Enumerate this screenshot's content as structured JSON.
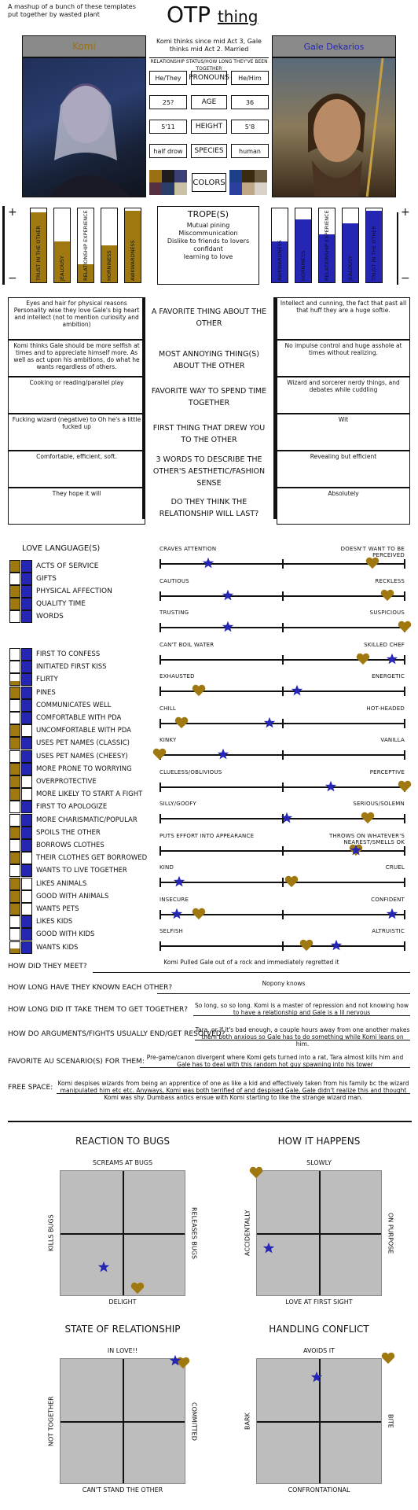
{
  "header": {
    "credit_1": "A mashup of a bunch of these templates",
    "credit_2": "put together by wasted plant",
    "title_main": "OTP",
    "title_sub": "thing"
  },
  "left_name": "Komi",
  "right_name": "Gale Dekarios",
  "relationship_note": "Komi thinks since mid Act 3, Gale thinks mid Act 2. Married",
  "relationship_label": "RELATIONSHIP STATUS/HOW LONG THEY'VE BEEN TOGETHER",
  "stats": [
    {
      "label": "PRONOUNS",
      "left": "He/They",
      "right": "He/Him"
    },
    {
      "label": "AGE",
      "left": "25?",
      "right": "36"
    },
    {
      "label": "HEIGHT",
      "left": "5'11",
      "right": "5'8"
    },
    {
      "label": "SPECIES",
      "left": "half drow",
      "right": "human"
    }
  ],
  "colors_label": "COLORS",
  "colors_left": [
    "#9a7012",
    "#1e1c1c",
    "#3a3f78",
    "#553040",
    "#2a3c68",
    "#c9c2a4"
  ],
  "colors_right": [
    "#1c3f8a",
    "#3a2a10",
    "#6a5a40",
    "#2b3f9e",
    "#c0a886",
    "#d9d2c8"
  ],
  "bars_left": [
    {
      "label": "TRUST IN THE OTHER",
      "level": 0.95
    },
    {
      "label": "JEALOUSY",
      "level": 0.55
    },
    {
      "label": "RELATIONSHIP EXPERIENCE",
      "level": 0.25
    },
    {
      "label": "HORNINESS",
      "level": 0.5
    },
    {
      "label": "AWKWARDNESS",
      "level": 0.97
    }
  ],
  "bars_right": [
    {
      "label": "AWKWARDNESS",
      "level": 0.55
    },
    {
      "label": "HORNINESS",
      "level": 0.85
    },
    {
      "label": "RELATIONSHIP EXPERIENCE",
      "level": 0.65
    },
    {
      "label": "JEALOUSY",
      "level": 0.8
    },
    {
      "label": "TRUST IN THE OTHER",
      "level": 0.97
    }
  ],
  "tropes_title": "TROPE(S)",
  "tropes": [
    "Mutual pining",
    "Miscommunication",
    "Dislike to friends to lovers",
    "confidant",
    "learning to love"
  ],
  "qa": [
    {
      "q": "A FAVORITE THING ABOUT THE OTHER",
      "left": "Eyes and hair for physical reasons Personality wise they love Gale's big heart and intellect (not to mention curiosity and ambition)",
      "right": "Intellect and cunning, the fact that past all that huff they are a huge softie."
    },
    {
      "q": "MOST ANNOYING THING(S) ABOUT THE OTHER",
      "left": "Komi thinks Gale should be more selfish at times and to appreciate himself more. As well as act upon his ambitions, do what he wants regardless of others.",
      "right": "No impulse control and huge asshole at times without realizing."
    },
    {
      "q": "FAVORITE WAY TO SPEND TIME TOGETHER",
      "left": "Cooking or reading/parallel play",
      "right": "Wizard and sorcerer nerdy things, and debates while cuddling"
    },
    {
      "q": "FIRST THING THAT DREW YOU TO THE OTHER",
      "left": "Fucking wizard (negative) to Oh he's a little fucked up",
      "right": "Wit"
    },
    {
      "q": "3 WORDS TO DESCRIBE THE OTHER'S AESTHETIC/FASHION SENSE",
      "left": "Comfortable, efficient, soft.",
      "right": "Revealing but efficient"
    },
    {
      "q": "DO THEY THINK THE RELATIONSHIP WILL LAST?",
      "left": "They hope it will",
      "right": "Absolutely"
    }
  ],
  "love_language_title": "LOVE LANGUAGE(S)",
  "love_languages": [
    {
      "label": "ACTS OF SERVICE",
      "left": 1,
      "right": 1
    },
    {
      "label": "GIFTS",
      "left": 0,
      "right": 1
    },
    {
      "label": "PHYSICAL AFFECTION",
      "left": 1,
      "right": 1
    },
    {
      "label": "QUALITY TIME",
      "left": 1,
      "right": 1
    },
    {
      "label": "WORDS",
      "left": 0,
      "right": 1
    }
  ],
  "traits": [
    {
      "label": "FIRST TO CONFESS",
      "left": 0,
      "right": 1
    },
    {
      "label": "INITIATED FIRST KISS",
      "left": 0,
      "right": 1
    },
    {
      "label": "FLIRTY",
      "left": 0.4,
      "right": 1
    },
    {
      "label": "PINES",
      "left": 1,
      "right": 1
    },
    {
      "label": "COMMUNICATES WELL",
      "left": 0,
      "right": 1
    },
    {
      "label": "COMFORTABLE WITH PDA",
      "left": 0,
      "right": 1
    },
    {
      "label": "UNCOMFORTABLE WITH PDA",
      "left": 1,
      "right": 0
    },
    {
      "label": "USES PET NAMES (CLASSIC)",
      "left": 1,
      "right": 1
    },
    {
      "label": "USES PET NAMES (CHEESY)",
      "left": 0,
      "right": 1
    },
    {
      "label": "MORE PRONE TO WORRYING",
      "left": 1,
      "right": 1
    },
    {
      "label": "OVERPROTECTIVE",
      "left": 1,
      "right": 0
    },
    {
      "label": "MORE LIKELY TO START A FIGHT",
      "left": 1,
      "right": 0
    },
    {
      "label": "FIRST TO APOLOGIZE",
      "left": 0,
      "right": 1
    },
    {
      "label": "MORE CHARISMATIC/POPULAR",
      "left": 0,
      "right": 1
    },
    {
      "label": "SPOILS THE OTHER",
      "left": 1,
      "right": 1
    },
    {
      "label": "BORROWS CLOTHES",
      "left": 0,
      "right": 1
    },
    {
      "label": "THEIR CLOTHES GET BORROWED",
      "left": 1,
      "right": 0
    },
    {
      "label": "WANTS TO LIVE TOGETHER",
      "left": 0,
      "right": 1
    },
    {
      "label": "LIKES ANIMALS",
      "left": 1,
      "right": 0
    },
    {
      "label": "GOOD WITH ANIMALS",
      "left": 1,
      "right": 0
    },
    {
      "label": "WANTS PETS",
      "left": 1,
      "right": 0
    },
    {
      "label": "LIKES KIDS",
      "left": 0,
      "right": 1
    },
    {
      "label": "GOOD WITH KIDS",
      "left": 0,
      "right": 1
    },
    {
      "label": "WANTS KIDS",
      "left": 0.4,
      "right": 1
    }
  ],
  "sliders": [
    {
      "left": "CRAVES ATTENTION",
      "right": "DOESN'T WANT TO BE PERCEIVED",
      "heart": 0.87,
      "star": 0.2
    },
    {
      "left": "CAUTIOUS",
      "right": "RECKLESS",
      "heart": 0.93,
      "star": 0.28
    },
    {
      "left": "TRUSTING",
      "right": "SUSPICIOUS",
      "heart": 1.0,
      "star": 0.28
    },
    {
      "left": "CAN'T BOIL WATER",
      "right": "SKILLED CHEF",
      "heart": 0.83,
      "star": 0.95
    },
    {
      "left": "EXHAUSTED",
      "right": "ENERGETIC",
      "heart": 0.16,
      "star": 0.56
    },
    {
      "left": "CHILL",
      "right": "HOT-HEADED",
      "heart": 0.09,
      "star": 0.45
    },
    {
      "left": "KINKY",
      "right": "VANILLA",
      "heart": 0.0,
      "star": 0.26
    },
    {
      "left": "CLUELESS/OBLIVIOUS",
      "right": "PERCEPTIVE",
      "heart": 1.0,
      "star": 0.7
    },
    {
      "left": "SILLY/GOOFY",
      "right": "SERIOUS/SOLEMN",
      "heart": 0.85,
      "star": 0.52
    },
    {
      "left": "PUTS EFFORT INTO APPEARANCE",
      "right": "THROWS ON WHATEVER'S NEAREST/SMELLS OK",
      "heart": 0.8,
      "star": 0.8
    },
    {
      "left": "KIND",
      "right": "CRUEL",
      "heart": 0.54,
      "star": 0.08
    },
    {
      "left": "INSECURE",
      "right": "CONFIDENT",
      "heart": 0.16,
      "star": 0.07,
      "star2": 0.95
    },
    {
      "left": "SELFISH",
      "right": "ALTRUISTIC",
      "heart": 0.6,
      "star": 0.72
    }
  ],
  "questions": [
    {
      "q": "HOW DID THEY MEET?",
      "a": "Komi Pulled Gale out of a rock and immediately regretted it"
    },
    {
      "q": "HOW LONG HAVE THEY KNOWN EACH OTHER?",
      "a": "Nopony knows"
    },
    {
      "q": "HOW LONG DID IT TAKE THEM TO GET TOGETHER?",
      "a": "So long, so so long. Komi is a master of repression and not knowing how to have a relationship and Gale is a lil nervous"
    },
    {
      "q": "HOW DO ARGUMENTS/FIGHTS USUALLY END/GET RESOLVED?",
      "a": "Tara, or if it's bad enough, a couple hours away from one another makes them both anxious so Gale has to do something while Komi leans on him."
    },
    {
      "q": "FAVORITE AU SCENARIO(S) FOR THEM:",
      "a": "Pre-game/canon divergent where Komi gets turned into a rat, Tara almost kills him and Gale has to deal with this random hot guy spawning into his tower"
    },
    {
      "q": "FREE SPACE:",
      "a": "Komi despises wizards from being an apprentice of one as like a kid and effectively taken from his family bc the wizard manipulated him etc etc. Anyways, Komi was both terrified of and despised Gale. Gale didn't realize this and thought Komi was shy. Dumbass antics ensue with Komi starting to like the strange wizard man."
    }
  ],
  "charts": [
    {
      "title": "REACTION TO BUGS",
      "top": "SCREAMS AT BUGS",
      "bottom": "DELIGHT",
      "left": "KILLS BUGS",
      "right": "RELEASES BUGS",
      "heart": [
        0.62,
        0.06
      ],
      "star": [
        0.35,
        0.23
      ]
    },
    {
      "title": "HOW IT HAPPENS",
      "top": "SLOWLY",
      "bottom": "LOVE AT FIRST SIGHT",
      "left": "ACCIDENTALLY",
      "right": "ON PURPOSE",
      "heart": [
        0.0,
        0.98
      ],
      "star": [
        0.1,
        0.38
      ]
    },
    {
      "title": "STATE OF RELATIONSHIP",
      "top": "IN LOVE!!",
      "bottom": "CAN'T STAND THE OTHER",
      "left": "NOT TOGETHER",
      "right": "COMMITTED",
      "heart": [
        0.98,
        0.96
      ],
      "star": [
        0.92,
        0.98
      ]
    },
    {
      "title": "HANDLING CONFLICT",
      "top": "AVOIDS IT",
      "bottom": "CONFRONTATIONAL",
      "left": "BARK",
      "right": "BITE",
      "heart": [
        1.05,
        1.0
      ],
      "star": [
        0.48,
        0.85
      ]
    }
  ]
}
